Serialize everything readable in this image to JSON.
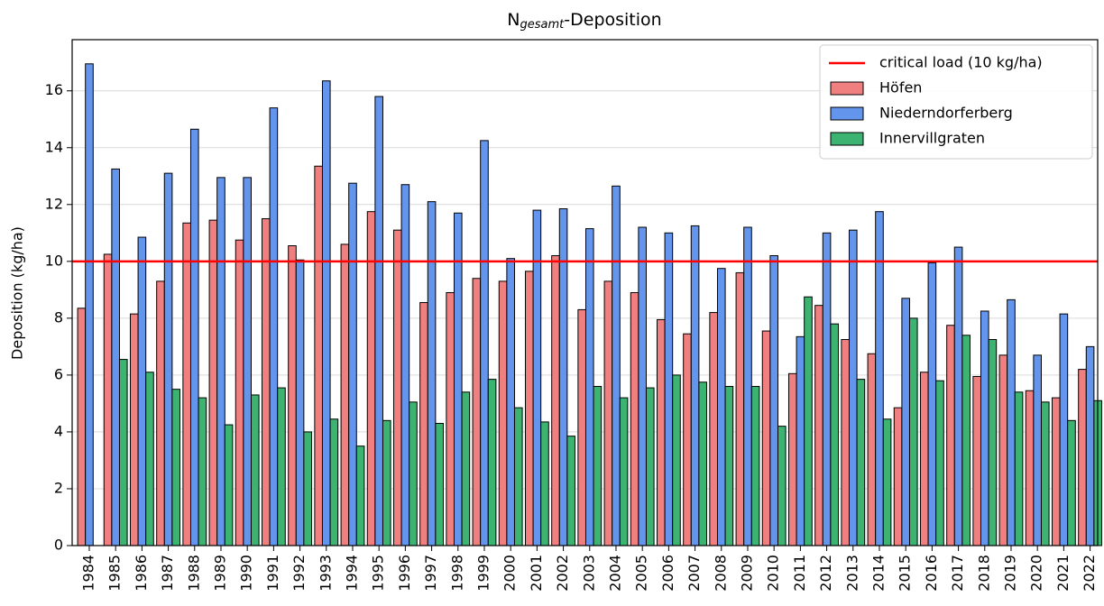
{
  "chart_data": {
    "type": "bar",
    "title": [
      "N",
      "gesamt",
      "-Deposition"
    ],
    "y_label": "Deposition (kg/ha)",
    "categories": [
      "1984",
      "1985",
      "1986",
      "1987",
      "1988",
      "1989",
      "1990",
      "1991",
      "1992",
      "1993",
      "1994",
      "1995",
      "1996",
      "1997",
      "1998",
      "1999",
      "2000",
      "2001",
      "2002",
      "2003",
      "2004",
      "2005",
      "2006",
      "2007",
      "2008",
      "2009",
      "2010",
      "2011",
      "2012",
      "2013",
      "2014",
      "2015",
      "2016",
      "2017",
      "2018",
      "2019",
      "2020",
      "2021",
      "2022"
    ],
    "series": [
      {
        "name": "Höfen",
        "color": "#f08080",
        "values": [
          8.35,
          10.25,
          8.15,
          9.3,
          11.35,
          11.45,
          10.75,
          11.5,
          10.55,
          13.35,
          10.6,
          11.75,
          11.1,
          8.55,
          8.9,
          9.4,
          9.3,
          9.65,
          10.2,
          8.3,
          9.3,
          8.9,
          7.95,
          7.45,
          8.2,
          9.6,
          7.55,
          6.05,
          8.45,
          7.25,
          6.75,
          4.85,
          6.1,
          7.75,
          5.95,
          6.7,
          5.45,
          5.2,
          6.2
        ]
      },
      {
        "name": "Niederndorferberg",
        "color": "#6495ed",
        "values": [
          16.95,
          13.25,
          10.85,
          13.1,
          14.65,
          12.95,
          12.95,
          15.4,
          10.05,
          16.35,
          12.75,
          15.8,
          12.7,
          12.1,
          11.7,
          14.25,
          10.1,
          11.8,
          11.85,
          11.15,
          12.65,
          11.2,
          11.0,
          11.25,
          9.75,
          11.2,
          10.2,
          7.35,
          11.0,
          11.1,
          11.75,
          8.7,
          9.95,
          10.5,
          8.25,
          8.65,
          6.7,
          8.15,
          7.0
        ]
      },
      {
        "name": "Innervillgraten",
        "color": "#3cb371",
        "values": [
          null,
          6.55,
          6.1,
          5.5,
          5.2,
          4.25,
          5.3,
          5.55,
          4.0,
          4.45,
          3.5,
          4.4,
          5.05,
          4.3,
          5.4,
          5.85,
          4.85,
          4.35,
          3.85,
          5.6,
          5.2,
          5.55,
          6.0,
          5.75,
          5.6,
          5.6,
          4.2,
          8.75,
          7.8,
          5.85,
          4.45,
          8.0,
          5.8,
          7.4,
          7.25,
          5.4,
          5.05,
          4.4,
          5.1
        ]
      }
    ],
    "reference_line": {
      "name": "critical load (10 kg/ha)",
      "value": 10,
      "color": "#ff0000"
    },
    "ylim": [
      0,
      17.8
    ],
    "yticks": [
      0,
      2,
      4,
      6,
      8,
      10,
      12,
      14,
      16
    ],
    "grid": true,
    "legend": "upper right"
  }
}
